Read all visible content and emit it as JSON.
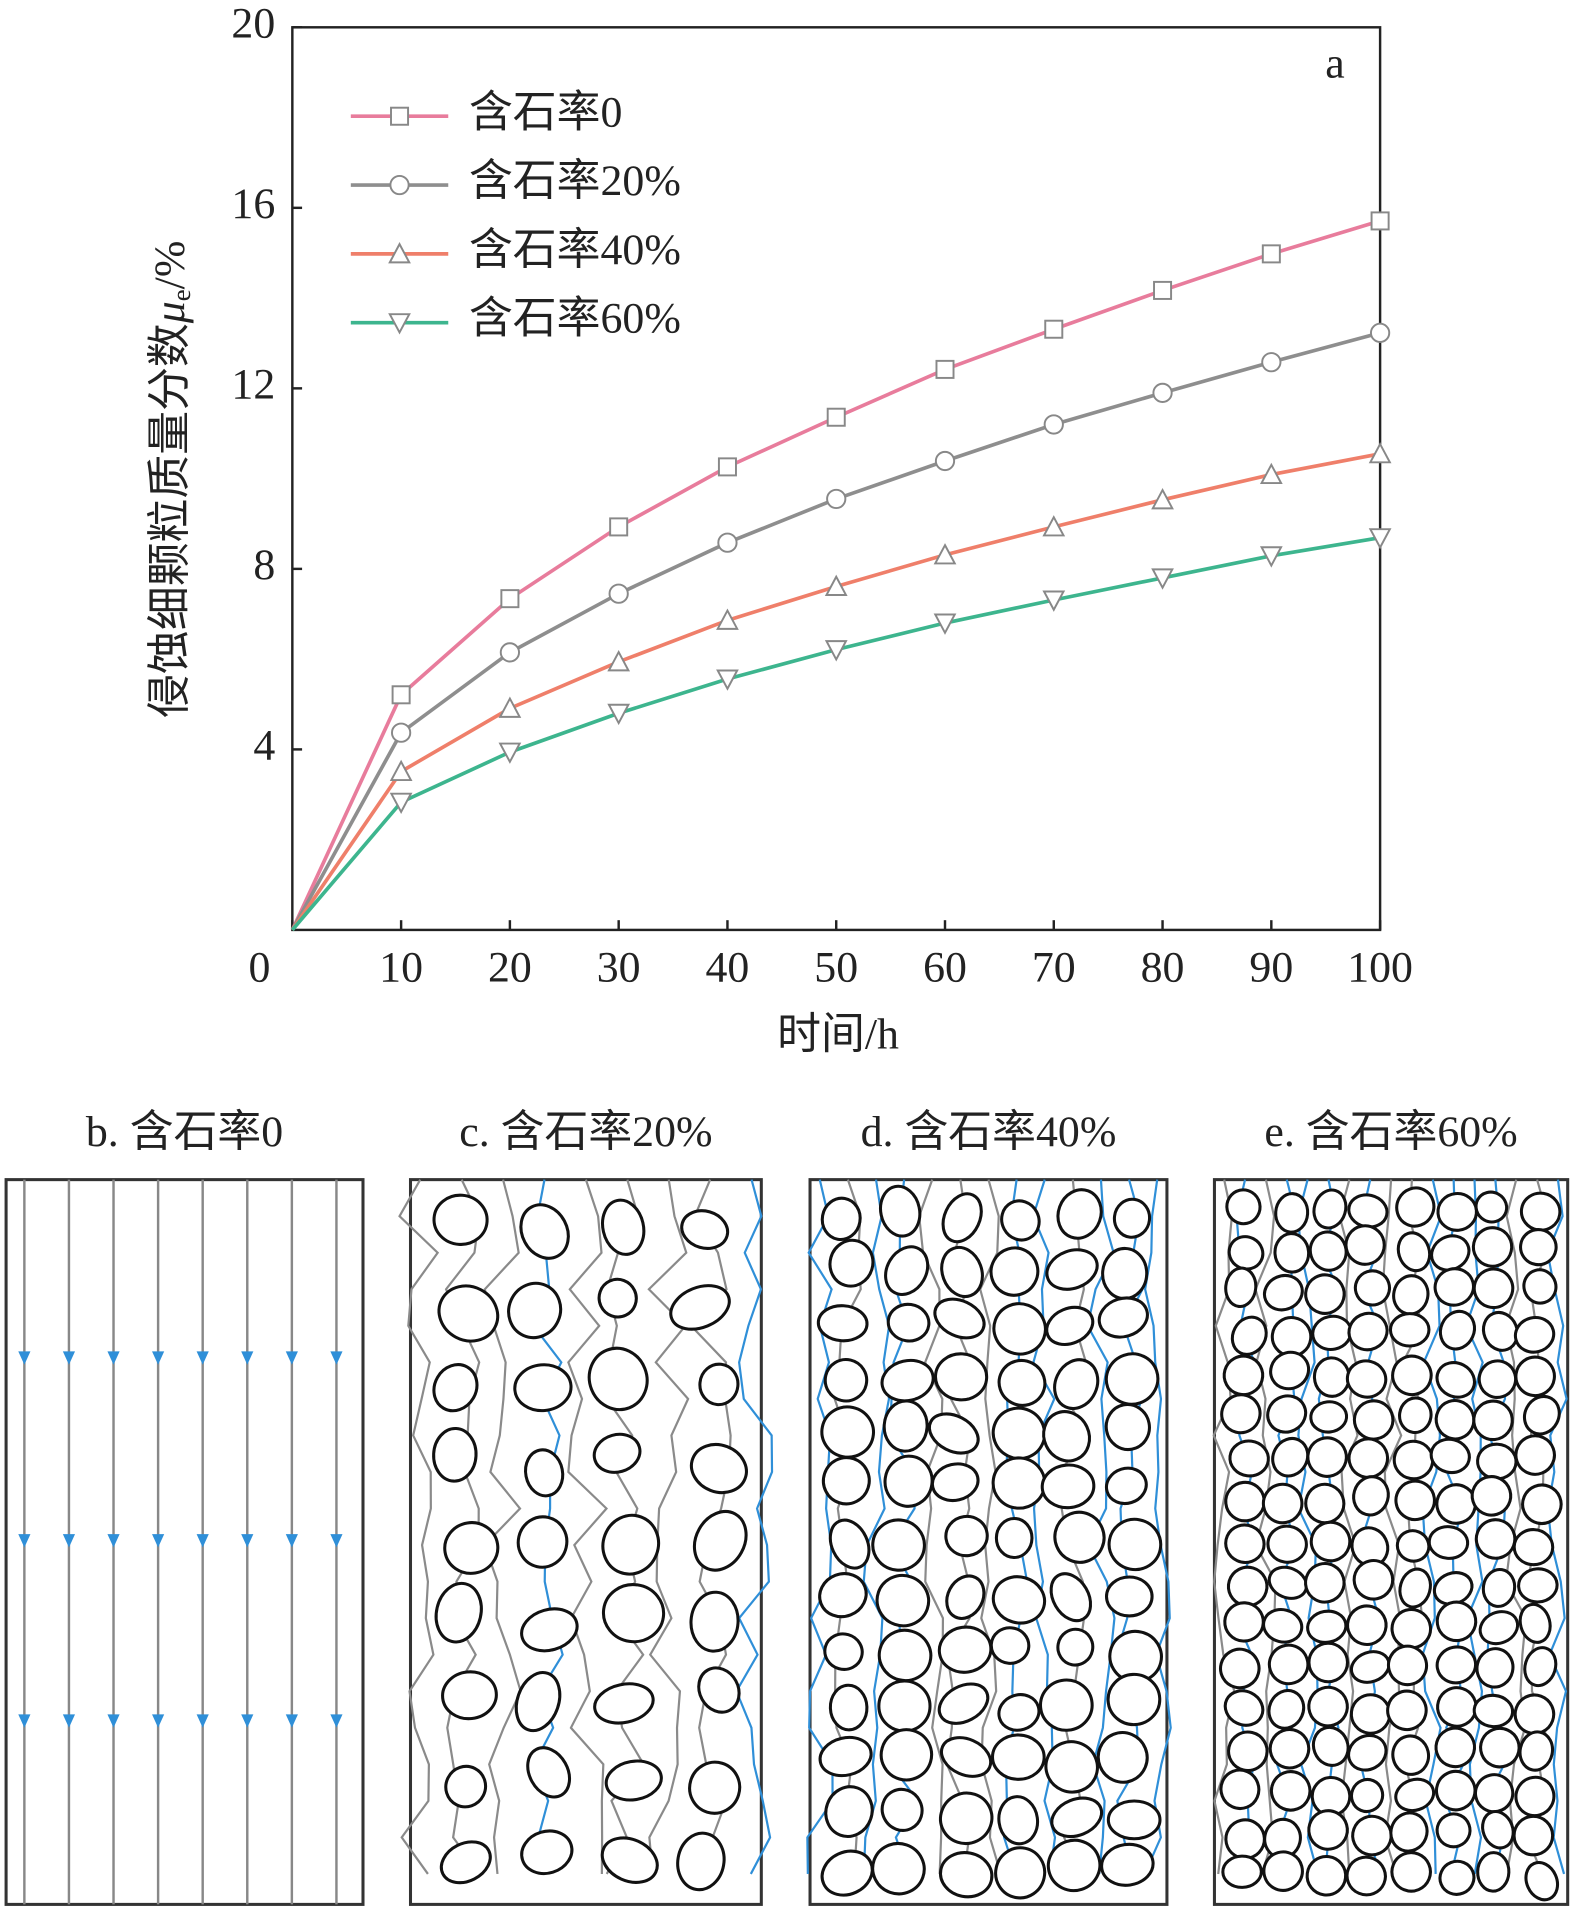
{
  "chart_data": {
    "type": "line",
    "annotation": "a",
    "xlabel": "时间/h",
    "ylabel": [
      "侵蚀细颗粒质量分数",
      "μ",
      "e",
      "/%"
    ],
    "x": [
      0,
      10,
      20,
      30,
      40,
      50,
      60,
      70,
      80,
      90,
      100
    ],
    "xlim": [
      0,
      100
    ],
    "xticks": [
      0,
      10,
      20,
      30,
      40,
      50,
      60,
      70,
      80,
      90,
      100
    ],
    "ylim": [
      0,
      20
    ],
    "yticks": [
      4,
      8,
      12,
      16,
      20
    ],
    "legend": "upper left",
    "series": [
      {
        "name": "含石率0",
        "color": "#e87c9c",
        "marker": "square",
        "values": [
          0,
          5.21,
          7.34,
          8.93,
          10.26,
          11.36,
          12.42,
          13.31,
          14.17,
          14.98,
          15.71
        ]
      },
      {
        "name": "含石率20%",
        "color": "#8e8e8e",
        "marker": "circle",
        "values": [
          0,
          4.37,
          6.15,
          7.45,
          8.58,
          9.55,
          10.39,
          11.2,
          11.9,
          12.58,
          13.23
        ]
      },
      {
        "name": "含石率40%",
        "color": "#ef7f6a",
        "marker": "triangle-up",
        "values": [
          0,
          3.51,
          4.91,
          5.94,
          6.86,
          7.61,
          8.31,
          8.93,
          9.53,
          10.09,
          10.55
        ]
      },
      {
        "name": "含石率60%",
        "color": "#3db58e",
        "marker": "triangle-down",
        "values": [
          0,
          2.83,
          3.94,
          4.8,
          5.56,
          6.21,
          6.8,
          7.31,
          7.8,
          8.29,
          8.69
        ]
      }
    ]
  },
  "panels": [
    {
      "title": "b. 含石率0"
    },
    {
      "title": "c. 含石率20%"
    },
    {
      "title": "d. 含石率40%"
    },
    {
      "title": "e. 含石率60%"
    }
  ]
}
